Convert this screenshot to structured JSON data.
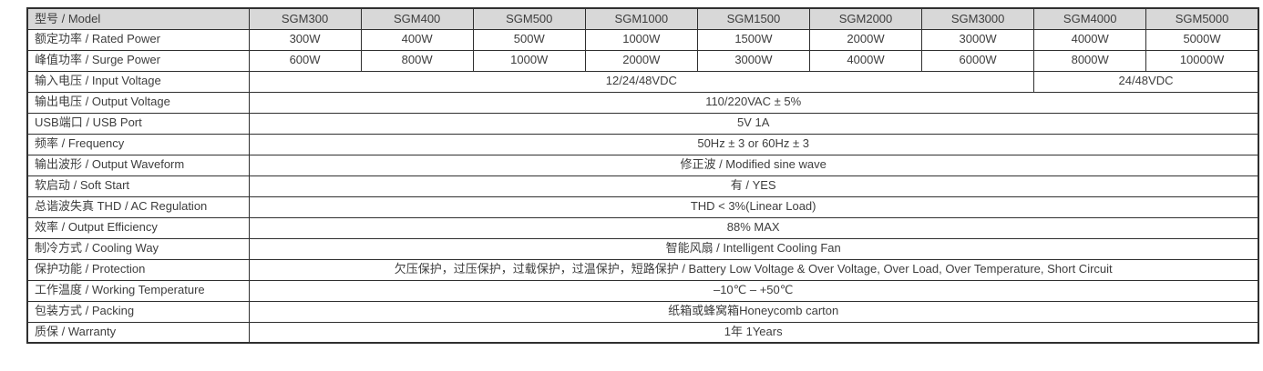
{
  "table": {
    "colors": {
      "header_bg": "#d8d8d8",
      "border": "#2f2f2f",
      "text": "#3d3d3d",
      "page_bg": "#ffffff"
    },
    "header": {
      "label": "型号 / Model",
      "models": [
        "SGM300",
        "SGM400",
        "SGM500",
        "SGM1000",
        "SGM1500",
        "SGM2000",
        "SGM3000",
        "SGM4000",
        "SGM5000"
      ]
    },
    "rows": [
      {
        "label": "额定功率 / Rated Power",
        "type": "per-model",
        "values": [
          "300W",
          "400W",
          "500W",
          "1000W",
          "1500W",
          "2000W",
          "3000W",
          "4000W",
          "5000W"
        ]
      },
      {
        "label": "峰值功率 / Surge Power",
        "type": "per-model",
        "values": [
          "600W",
          "800W",
          "1000W",
          "2000W",
          "3000W",
          "4000W",
          "6000W",
          "8000W",
          "10000W"
        ]
      },
      {
        "label": "输入电压 / Input Voltage",
        "type": "split",
        "cells": [
          {
            "text": "12/24/48VDC",
            "span": 7
          },
          {
            "text": "24/48VDC",
            "span": 2
          }
        ]
      },
      {
        "label": "输出电压 / Output Voltage",
        "type": "full",
        "value": "110/220VAC ± 5%"
      },
      {
        "label": "USB端口 / USB Port",
        "type": "full",
        "value": "5V 1A"
      },
      {
        "label": "频率 / Frequency",
        "type": "full",
        "value": "50Hz ± 3 or 60Hz ± 3"
      },
      {
        "label": "输出波形 / Output Waveform",
        "type": "full",
        "value": "修正波 / Modified sine wave"
      },
      {
        "label": "软启动 / Soft Start",
        "type": "full",
        "value": "有 / YES"
      },
      {
        "label": "总谐波失真 THD / AC Regulation",
        "type": "full",
        "value": "THD < 3%(Linear Load)"
      },
      {
        "label": "效率 / Output Efficiency",
        "type": "full",
        "value": "88% MAX"
      },
      {
        "label": "制冷方式 / Cooling Way",
        "type": "full",
        "value": "智能风扇 / Intelligent Cooling Fan"
      },
      {
        "label": "保护功能 / Protection",
        "type": "full",
        "value": "欠压保护，过压保护，过载保护，过温保护，短路保护 / Battery Low Voltage & Over Voltage, Over Load, Over Temperature, Short Circuit"
      },
      {
        "label": "工作温度 / Working Temperature",
        "type": "full",
        "value": "–10℃ – +50℃"
      },
      {
        "label": "包装方式 / Packing",
        "type": "full",
        "value": "纸箱或蜂窝箱Honeycomb carton"
      },
      {
        "label": "质保 / Warranty",
        "type": "full",
        "value": "1年 1Years"
      }
    ]
  }
}
